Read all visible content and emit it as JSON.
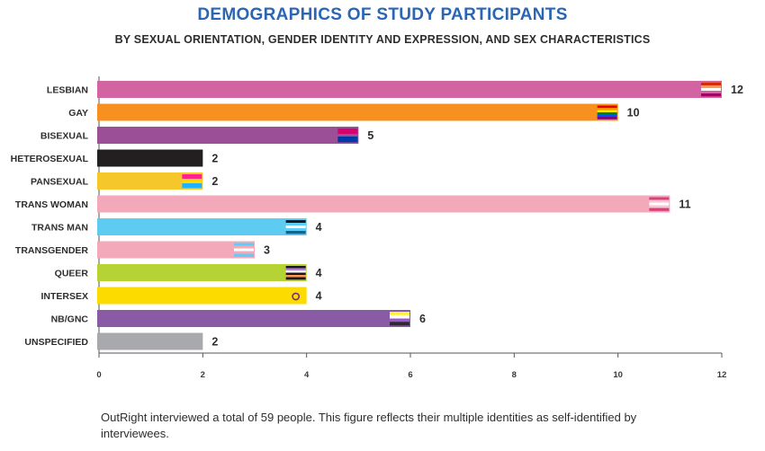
{
  "chart_data": {
    "type": "bar",
    "orientation": "horizontal",
    "title": "DEMOGRAPHICS OF STUDY PARTICIPANTS",
    "subtitle": "BY SEXUAL ORIENTATION, GENDER IDENTITY AND EXPRESSION, AND SEX CHARACTERISTICS",
    "categories": [
      "LESBIAN",
      "GAY",
      "BISEXUAL",
      "HETEROSEXUAL",
      "PANSEXUAL",
      "TRANS WOMAN",
      "TRANS MAN",
      "TRANSGENDER",
      "QUEER",
      "INTERSEX",
      "NB/GNC",
      "UNSPECIFIED"
    ],
    "values": [
      12,
      10,
      5,
      2,
      2,
      11,
      4,
      3,
      4,
      4,
      6,
      2
    ],
    "colors": [
      "#d264a2",
      "#f7901e",
      "#9a4f97",
      "#231f20",
      "#f5c72a",
      "#f4a9bb",
      "#5ecbf0",
      "#f4a9bb",
      "#b5d334",
      "#fcdc00",
      "#8a5ba5",
      "#a7a9ac"
    ],
    "flags": [
      "lesbian",
      "rainbow",
      "bisexual",
      "none",
      "pansexual",
      "trans",
      "transman",
      "transgender",
      "queer",
      "intersex",
      "nonbinary",
      "none"
    ],
    "xlim": [
      0,
      12
    ],
    "xticks": [
      0,
      2,
      4,
      6,
      8,
      10,
      12
    ],
    "xlabel": "",
    "ylabel": "",
    "grid": false
  },
  "footnote": "OutRight interviewed a total of 59 people. This figure reflects their multiple identities as self-identified by interviewees."
}
